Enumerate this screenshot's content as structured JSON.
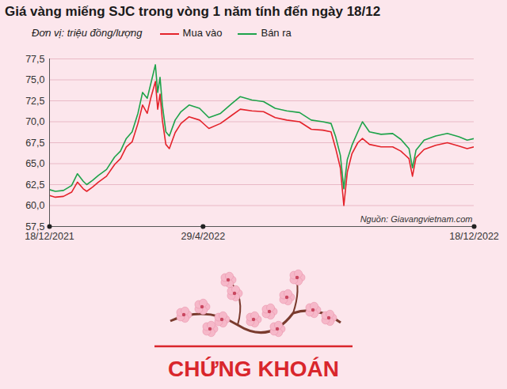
{
  "chart_data": {
    "type": "line",
    "title": "Giá vàng miếng SJC trong vòng 1 năm tính đến ngày 18/12",
    "subtitle": "Đơn vị: triệu đồng/lượng",
    "annotations": [
      "Nguồn: Giavangvietnam.com"
    ],
    "x": [
      "2021-12-18",
      "2021-12-23",
      "2021-12-30",
      "2022-01-06",
      "2022-01-11",
      "2022-01-16",
      "2022-01-19",
      "2022-01-24",
      "2022-01-29",
      "2022-02-05",
      "2022-02-12",
      "2022-02-17",
      "2022-02-22",
      "2022-02-27",
      "2022-03-04",
      "2022-03-08",
      "2022-03-12",
      "2022-03-15",
      "2022-03-19",
      "2022-03-21",
      "2022-03-23",
      "2022-03-25",
      "2022-03-28",
      "2022-03-31",
      "2022-04-05",
      "2022-04-10",
      "2022-04-17",
      "2022-04-26",
      "2022-05-04",
      "2022-05-14",
      "2022-05-24",
      "2022-05-31",
      "2022-06-10",
      "2022-06-20",
      "2022-06-30",
      "2022-07-10",
      "2022-07-21",
      "2022-07-31",
      "2022-08-10",
      "2022-08-17",
      "2022-08-21",
      "2022-08-25",
      "2022-08-28",
      "2022-08-31",
      "2022-09-04",
      "2022-09-09",
      "2022-09-13",
      "2022-09-19",
      "2022-09-29",
      "2022-10-09",
      "2022-10-16",
      "2022-10-23",
      "2022-10-26",
      "2022-10-29",
      "2022-11-05",
      "2022-11-15",
      "2022-11-25",
      "2022-12-05",
      "2022-12-12",
      "2022-12-18"
    ],
    "series": [
      {
        "name": "Mua vào",
        "color": "#e4232b",
        "values": [
          61.2,
          61.0,
          61.1,
          61.6,
          62.8,
          62.0,
          61.7,
          62.2,
          62.8,
          63.5,
          64.9,
          65.6,
          67.0,
          67.6,
          69.8,
          72.0,
          71.0,
          72.8,
          74.8,
          71.5,
          73.3,
          70.2,
          67.3,
          66.8,
          68.7,
          69.8,
          70.6,
          70.2,
          69.2,
          69.8,
          70.8,
          71.5,
          71.3,
          71.2,
          70.5,
          70.2,
          70.0,
          69.1,
          69.0,
          68.8,
          66.8,
          64.5,
          60.0,
          64.0,
          66.2,
          67.5,
          68.0,
          67.3,
          67.0,
          67.0,
          66.5,
          65.6,
          63.5,
          65.7,
          66.7,
          67.2,
          67.5,
          67.1,
          66.8,
          67.0
        ]
      },
      {
        "name": "Bán ra",
        "color": "#1ea34a",
        "values": [
          61.9,
          61.7,
          61.8,
          62.4,
          63.8,
          62.9,
          62.5,
          63.0,
          63.6,
          64.3,
          65.8,
          66.5,
          68.0,
          68.8,
          71.0,
          73.5,
          72.8,
          74.5,
          76.8,
          73.5,
          75.3,
          72.0,
          68.8,
          68.3,
          70.2,
          71.2,
          72.0,
          71.6,
          70.5,
          71.0,
          72.2,
          73.0,
          72.6,
          72.4,
          71.6,
          71.3,
          71.1,
          70.2,
          70.0,
          69.8,
          68.2,
          66.0,
          62.0,
          65.5,
          67.2,
          68.8,
          70.0,
          68.8,
          68.5,
          68.6,
          67.9,
          66.8,
          64.5,
          66.6,
          67.8,
          68.3,
          68.6,
          68.2,
          67.8,
          68.0
        ]
      }
    ],
    "xlim": [
      "2021-12-18",
      "2022-12-18"
    ],
    "xticks": [
      {
        "value": "2021-12-18",
        "label": "18/12/2021"
      },
      {
        "value": "2022-04-29",
        "label": "29/4/2022"
      },
      {
        "value": "2022-12-18",
        "label": "18/12/2022"
      }
    ],
    "ylim": [
      57.5,
      77.5
    ],
    "yticks": [
      {
        "value": 57.5,
        "label": "57,5"
      },
      {
        "value": 60,
        "label": "60,0"
      },
      {
        "value": 62.5,
        "label": "62,5"
      },
      {
        "value": 65,
        "label": "65,0"
      },
      {
        "value": 67.5,
        "label": "67,5"
      },
      {
        "value": 70,
        "label": "70,0"
      },
      {
        "value": 72.5,
        "label": "72,5"
      },
      {
        "value": 75,
        "label": "75,0"
      },
      {
        "value": 77.5,
        "label": "77,5"
      }
    ],
    "grid": true,
    "legend": "top"
  },
  "banner": "CHỨNG KHOÁN"
}
